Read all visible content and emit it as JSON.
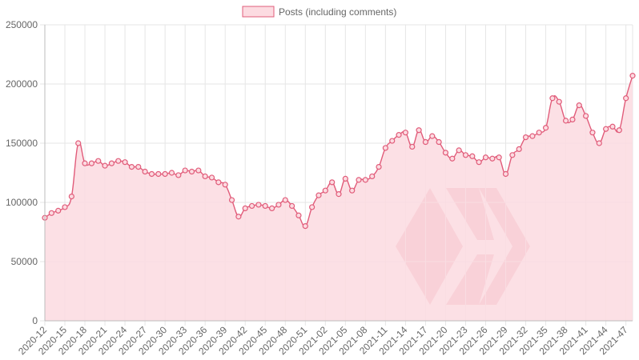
{
  "chart_data": {
    "type": "area",
    "title": "",
    "xlabel": "",
    "ylabel": "",
    "ylim": [
      0,
      250000
    ],
    "yticks": [
      "0",
      "50000",
      "100000",
      "150000",
      "200000",
      "250000"
    ],
    "xtick_labels": [
      "2020-12",
      "2020-15",
      "2020-18",
      "2020-21",
      "2020-24",
      "2020-27",
      "2020-30",
      "2020-33",
      "2020-36",
      "2020-39",
      "2020-42",
      "2020-45",
      "2020-48",
      "2020-51",
      "2021-02",
      "2021-05",
      "2021-08",
      "2021-11",
      "2021-14",
      "2021-17",
      "2021-20",
      "2021-23",
      "2021-26",
      "2021-29",
      "2021-32",
      "2021-35",
      "2021-38",
      "2021-41",
      "2021-44",
      "2021-47"
    ],
    "legend": {
      "position": "top",
      "label": "Posts (including comments)"
    },
    "colors": {
      "line": "#e15c7a",
      "fill": "#fcdbe1",
      "grid": "#e6e6e6",
      "watermark": "#e58b96"
    },
    "grid": true,
    "series": [
      {
        "name": "Posts (including comments)",
        "values": [
          87000,
          91000,
          93000,
          96000,
          105000,
          150000,
          133000,
          133000,
          135000,
          131000,
          133000,
          135000,
          134000,
          130000,
          130000,
          126000,
          124000,
          124000,
          124000,
          125000,
          123000,
          127000,
          126000,
          127000,
          122000,
          121000,
          117000,
          115000,
          102000,
          88000,
          95000,
          97000,
          98000,
          97000,
          95000,
          98000,
          102000,
          97000,
          89000,
          80000,
          96000,
          106000,
          110000,
          117000,
          107000,
          120000,
          110000,
          119000,
          119000,
          122000,
          130000,
          146000,
          152000,
          157000,
          159000,
          147000,
          161000,
          151000,
          156000,
          151000,
          142000,
          137000,
          144000,
          140000,
          139000,
          134000,
          138000,
          137000,
          138000,
          124000,
          140000,
          145000,
          155000,
          156000,
          159000,
          163000,
          188000,
          185000,
          169000,
          170000,
          182000,
          173000,
          159000,
          150000,
          162000,
          164000,
          161000,
          188000,
          207000
        ]
      }
    ]
  }
}
